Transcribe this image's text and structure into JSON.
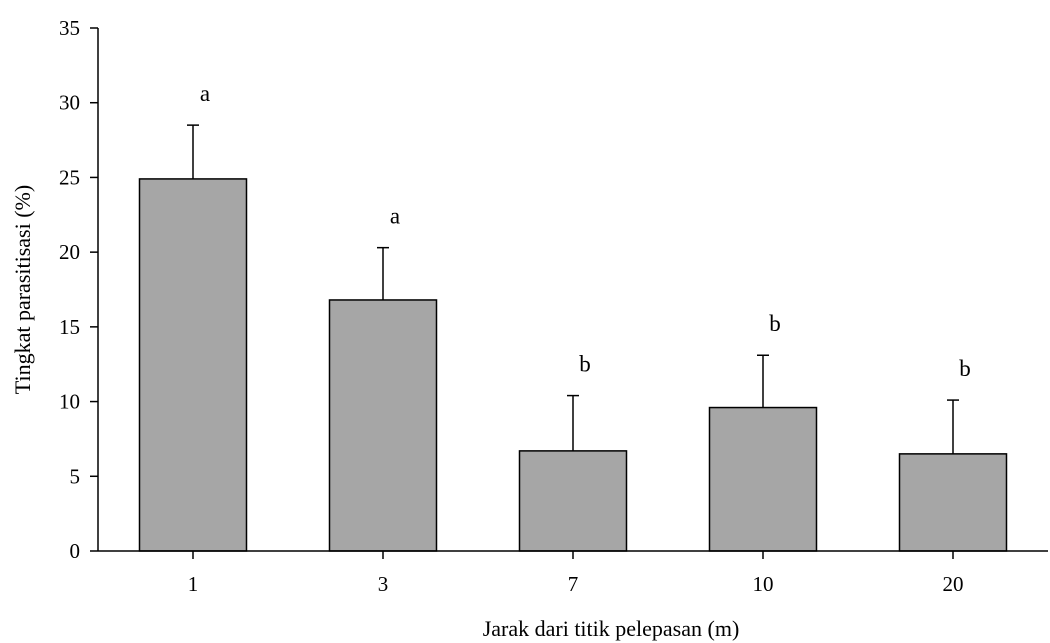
{
  "chart_data": {
    "type": "bar",
    "categories": [
      "1",
      "3",
      "7",
      "10",
      "20"
    ],
    "values": [
      24.9,
      16.8,
      6.7,
      9.6,
      6.5
    ],
    "error_upper": [
      28.5,
      20.3,
      10.4,
      13.1,
      10.1
    ],
    "significance_letters": [
      "a",
      "a",
      "b",
      "b",
      "b"
    ],
    "xlabel": "Jarak dari titik pelepasan (m)",
    "ylabel": "Tingkat parasitisasi (%)",
    "ylim": [
      0,
      35
    ],
    "yticks": [
      "0",
      "5",
      "10",
      "15",
      "20",
      "25",
      "30",
      "35"
    ],
    "grid": false,
    "bar_color": "#a6a6a6"
  }
}
